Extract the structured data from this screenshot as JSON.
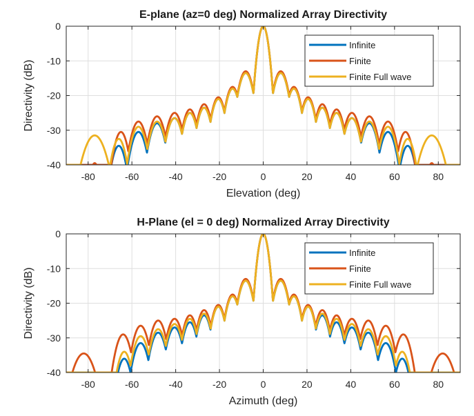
{
  "chart_data": [
    {
      "type": "line",
      "title": "E-plane (az=0 deg) Normalized Array Directivity",
      "xlabel": "Elevation (deg)",
      "ylabel": "Directivity (dB)",
      "xlim": [
        -90,
        90
      ],
      "ylim": [
        -40,
        0
      ],
      "xticks": [
        -80,
        -60,
        -40,
        -20,
        0,
        20,
        40,
        60,
        80
      ],
      "yticks": [
        0,
        -10,
        -20,
        -30,
        -40
      ],
      "grid": true,
      "legend_position": "top-right",
      "series": [
        {
          "name": "Infinite",
          "color": "#0072BD",
          "sidelobes": [
            {
              "x": -66,
              "y": -34.5,
              "w": 4.5
            },
            {
              "x": -57,
              "y": -30.5,
              "w": 5.0
            },
            {
              "x": -48.5,
              "y": -28.0,
              "w": 5.0
            },
            {
              "x": -40.5,
              "y": -26.5,
              "w": 5.0
            },
            {
              "x": -33.5,
              "y": -25.0,
              "w": 4.6
            },
            {
              "x": -27,
              "y": -23.5,
              "w": 4.5
            },
            {
              "x": -20.5,
              "y": -21.0,
              "w": 4.4
            },
            {
              "x": -14,
              "y": -18.0,
              "w": 4.4
            },
            {
              "x": -8,
              "y": -13.5,
              "w": 4.6
            },
            {
              "x": 8,
              "y": -13.5,
              "w": 4.6
            },
            {
              "x": 14,
              "y": -18.0,
              "w": 4.4
            },
            {
              "x": 20.5,
              "y": -21.0,
              "w": 4.4
            },
            {
              "x": 27,
              "y": -23.5,
              "w": 4.5
            },
            {
              "x": 33.5,
              "y": -25.0,
              "w": 4.6
            },
            {
              "x": 40.5,
              "y": -26.5,
              "w": 5.0
            },
            {
              "x": 48.5,
              "y": -28.0,
              "w": 5.0
            },
            {
              "x": 57,
              "y": -30.5,
              "w": 5.0
            },
            {
              "x": 66,
              "y": -34.5,
              "w": 4.5
            }
          ]
        },
        {
          "name": "Finite",
          "color": "#D95319",
          "sidelobes": [
            {
              "x": -77,
              "y": -39.5,
              "w": 3.5
            },
            {
              "x": -65,
              "y": -30.5,
              "w": 4.5
            },
            {
              "x": -57,
              "y": -27.5,
              "w": 5.0
            },
            {
              "x": -48.5,
              "y": -26.0,
              "w": 5.0
            },
            {
              "x": -40.5,
              "y": -25.0,
              "w": 5.0
            },
            {
              "x": -33.5,
              "y": -24.0,
              "w": 4.6
            },
            {
              "x": -27,
              "y": -22.5,
              "w": 4.5
            },
            {
              "x": -20.5,
              "y": -20.5,
              "w": 4.4
            },
            {
              "x": -14,
              "y": -17.5,
              "w": 4.4
            },
            {
              "x": -8,
              "y": -13.0,
              "w": 4.6
            },
            {
              "x": 8,
              "y": -13.0,
              "w": 4.6
            },
            {
              "x": 14,
              "y": -17.5,
              "w": 4.4
            },
            {
              "x": 20.5,
              "y": -20.5,
              "w": 4.4
            },
            {
              "x": 27,
              "y": -22.5,
              "w": 4.5
            },
            {
              "x": 33.5,
              "y": -24.0,
              "w": 4.6
            },
            {
              "x": 40.5,
              "y": -25.0,
              "w": 5.0
            },
            {
              "x": 48.5,
              "y": -26.0,
              "w": 5.0
            },
            {
              "x": 57,
              "y": -27.5,
              "w": 5.0
            },
            {
              "x": 65,
              "y": -30.5,
              "w": 4.5
            },
            {
              "x": 77,
              "y": -39.5,
              "w": 3.5
            }
          ]
        },
        {
          "name": "Finite Full wave",
          "color": "#EDB120",
          "sidelobes": [
            {
              "x": -77,
              "y": -31.5,
              "w": 7.0
            },
            {
              "x": -66,
              "y": -32.5,
              "w": 4.5
            },
            {
              "x": -57,
              "y": -29.0,
              "w": 5.0
            },
            {
              "x": -48.5,
              "y": -27.5,
              "w": 5.0
            },
            {
              "x": -40.5,
              "y": -26.5,
              "w": 5.0
            },
            {
              "x": -33.5,
              "y": -25.0,
              "w": 4.6
            },
            {
              "x": -27,
              "y": -23.5,
              "w": 4.5
            },
            {
              "x": -20.5,
              "y": -21.0,
              "w": 4.4
            },
            {
              "x": -14,
              "y": -18.0,
              "w": 4.4
            },
            {
              "x": -8,
              "y": -13.5,
              "w": 4.6
            },
            {
              "x": 8,
              "y": -13.5,
              "w": 4.6
            },
            {
              "x": 14,
              "y": -18.0,
              "w": 4.4
            },
            {
              "x": 20.5,
              "y": -21.0,
              "w": 4.4
            },
            {
              "x": 27,
              "y": -23.5,
              "w": 4.5
            },
            {
              "x": 33.5,
              "y": -25.0,
              "w": 4.6
            },
            {
              "x": 40.5,
              "y": -26.5,
              "w": 5.0
            },
            {
              "x": 48.5,
              "y": -27.5,
              "w": 5.0
            },
            {
              "x": 57,
              "y": -29.0,
              "w": 5.0
            },
            {
              "x": 66,
              "y": -32.5,
              "w": 4.5
            },
            {
              "x": 77,
              "y": -31.5,
              "w": 7.0
            }
          ]
        }
      ]
    },
    {
      "type": "line",
      "title": "H-Plane (el = 0 deg) Normalized Array Directivity",
      "xlabel": "Azimuth (deg)",
      "ylabel": "Directivity (dB)",
      "xlim": [
        -90,
        90
      ],
      "ylim": [
        -40,
        0
      ],
      "xticks": [
        -80,
        -60,
        -40,
        -20,
        0,
        20,
        40,
        60,
        80
      ],
      "yticks": [
        0,
        -10,
        -20,
        -30,
        -40
      ],
      "grid": true,
      "legend_position": "top-right",
      "series": [
        {
          "name": "Infinite",
          "color": "#0072BD",
          "sidelobes": [
            {
              "x": -63.5,
              "y": -36.0,
              "w": 4.5
            },
            {
              "x": -56,
              "y": -31.5,
              "w": 5.0
            },
            {
              "x": -48,
              "y": -28.5,
              "w": 5.0
            },
            {
              "x": -40.5,
              "y": -27.0,
              "w": 5.0
            },
            {
              "x": -33.5,
              "y": -25.5,
              "w": 4.6
            },
            {
              "x": -27,
              "y": -23.5,
              "w": 4.5
            },
            {
              "x": -20.5,
              "y": -21.0,
              "w": 4.4
            },
            {
              "x": -14,
              "y": -18.0,
              "w": 4.4
            },
            {
              "x": -8,
              "y": -13.5,
              "w": 4.6
            },
            {
              "x": 8,
              "y": -13.5,
              "w": 4.6
            },
            {
              "x": 14,
              "y": -18.0,
              "w": 4.4
            },
            {
              "x": 20.5,
              "y": -21.0,
              "w": 4.4
            },
            {
              "x": 27,
              "y": -23.5,
              "w": 4.5
            },
            {
              "x": 33.5,
              "y": -25.5,
              "w": 4.6
            },
            {
              "x": 40.5,
              "y": -27.0,
              "w": 5.0
            },
            {
              "x": 48,
              "y": -28.5,
              "w": 5.0
            },
            {
              "x": 56,
              "y": -31.5,
              "w": 5.0
            },
            {
              "x": 63.5,
              "y": -36.0,
              "w": 4.5
            }
          ]
        },
        {
          "name": "Finite",
          "color": "#D95319",
          "sidelobes": [
            {
              "x": -82,
              "y": -34.5,
              "w": 7.0
            },
            {
              "x": -64,
              "y": -29.0,
              "w": 5.0
            },
            {
              "x": -56,
              "y": -26.5,
              "w": 5.0
            },
            {
              "x": -48,
              "y": -25.0,
              "w": 5.0
            },
            {
              "x": -40.5,
              "y": -24.5,
              "w": 5.0
            },
            {
              "x": -33.5,
              "y": -23.5,
              "w": 4.6
            },
            {
              "x": -27,
              "y": -22.0,
              "w": 4.5
            },
            {
              "x": -20.5,
              "y": -20.5,
              "w": 4.4
            },
            {
              "x": -14,
              "y": -17.5,
              "w": 4.4
            },
            {
              "x": -8,
              "y": -13.0,
              "w": 4.6
            },
            {
              "x": 8,
              "y": -13.0,
              "w": 4.6
            },
            {
              "x": 14,
              "y": -17.5,
              "w": 4.4
            },
            {
              "x": 20.5,
              "y": -20.5,
              "w": 4.4
            },
            {
              "x": 27,
              "y": -22.0,
              "w": 4.5
            },
            {
              "x": 33.5,
              "y": -23.5,
              "w": 4.6
            },
            {
              "x": 40.5,
              "y": -24.5,
              "w": 5.0
            },
            {
              "x": 48,
              "y": -25.0,
              "w": 5.0
            },
            {
              "x": 56,
              "y": -26.5,
              "w": 5.0
            },
            {
              "x": 64,
              "y": -29.0,
              "w": 5.0
            },
            {
              "x": 82,
              "y": -34.5,
              "w": 7.0
            }
          ]
        },
        {
          "name": "Finite Full wave",
          "color": "#EDB120",
          "sidelobes": [
            {
              "x": -63.5,
              "y": -34.0,
              "w": 4.5
            },
            {
              "x": -56,
              "y": -29.5,
              "w": 5.0
            },
            {
              "x": -48,
              "y": -27.5,
              "w": 5.0
            },
            {
              "x": -40.5,
              "y": -26.0,
              "w": 5.0
            },
            {
              "x": -33.5,
              "y": -24.5,
              "w": 4.6
            },
            {
              "x": -27,
              "y": -23.0,
              "w": 4.5
            },
            {
              "x": -20.5,
              "y": -21.0,
              "w": 4.4
            },
            {
              "x": -14,
              "y": -18.0,
              "w": 4.4
            },
            {
              "x": -8,
              "y": -13.5,
              "w": 4.6
            },
            {
              "x": 8,
              "y": -13.5,
              "w": 4.6
            },
            {
              "x": 14,
              "y": -18.0,
              "w": 4.4
            },
            {
              "x": 20.5,
              "y": -21.0,
              "w": 4.4
            },
            {
              "x": 27,
              "y": -23.0,
              "w": 4.5
            },
            {
              "x": 33.5,
              "y": -24.5,
              "w": 4.6
            },
            {
              "x": 40.5,
              "y": -26.0,
              "w": 5.0
            },
            {
              "x": 48,
              "y": -27.5,
              "w": 5.0
            },
            {
              "x": 56,
              "y": -29.5,
              "w": 5.0
            },
            {
              "x": 63.5,
              "y": -34.0,
              "w": 4.5
            }
          ]
        }
      ]
    }
  ]
}
